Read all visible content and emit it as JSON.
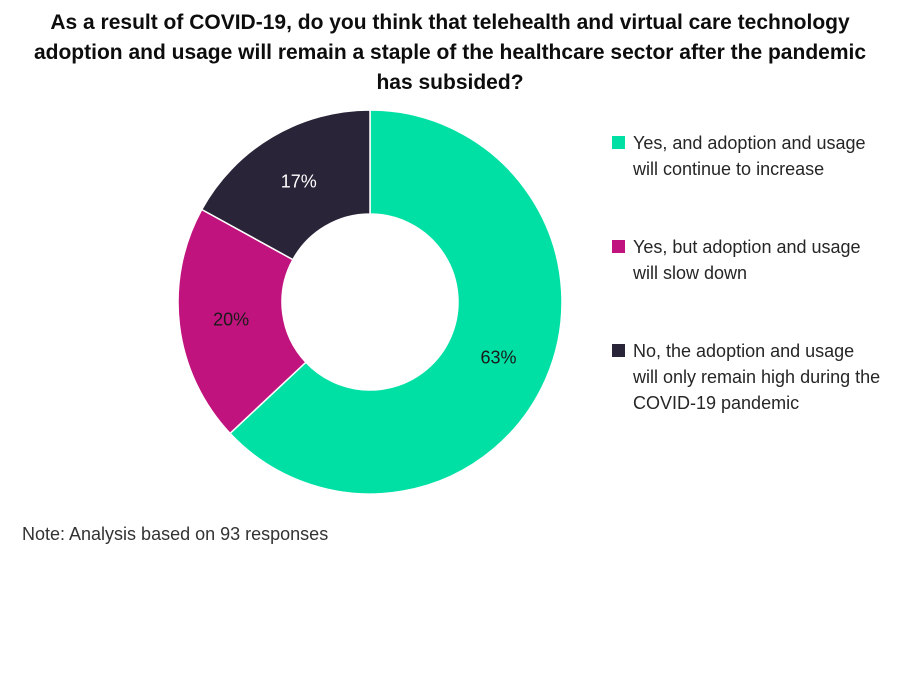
{
  "chart_data": {
    "type": "pie",
    "variant": "donut",
    "title": "As a result of COVID-19, do you think that telehealth and virtual care technology adoption and usage will remain a staple of the healthcare sector after the pandemic has subsided?",
    "slices": [
      {
        "label": "Yes, and adoption and usage will continue to increase",
        "value": 63,
        "display": "63%",
        "color": "#00E0A4"
      },
      {
        "label": "Yes, but adoption and usage will slow down",
        "value": 20,
        "display": "20%",
        "color": "#C0137D"
      },
      {
        "label": "No, the adoption and usage will only remain high during the COVID-19 pandemic",
        "value": 17,
        "display": "17%",
        "color": "#2A2438"
      }
    ],
    "legend_position": "right",
    "note": "Note: Analysis based on 93 responses"
  }
}
